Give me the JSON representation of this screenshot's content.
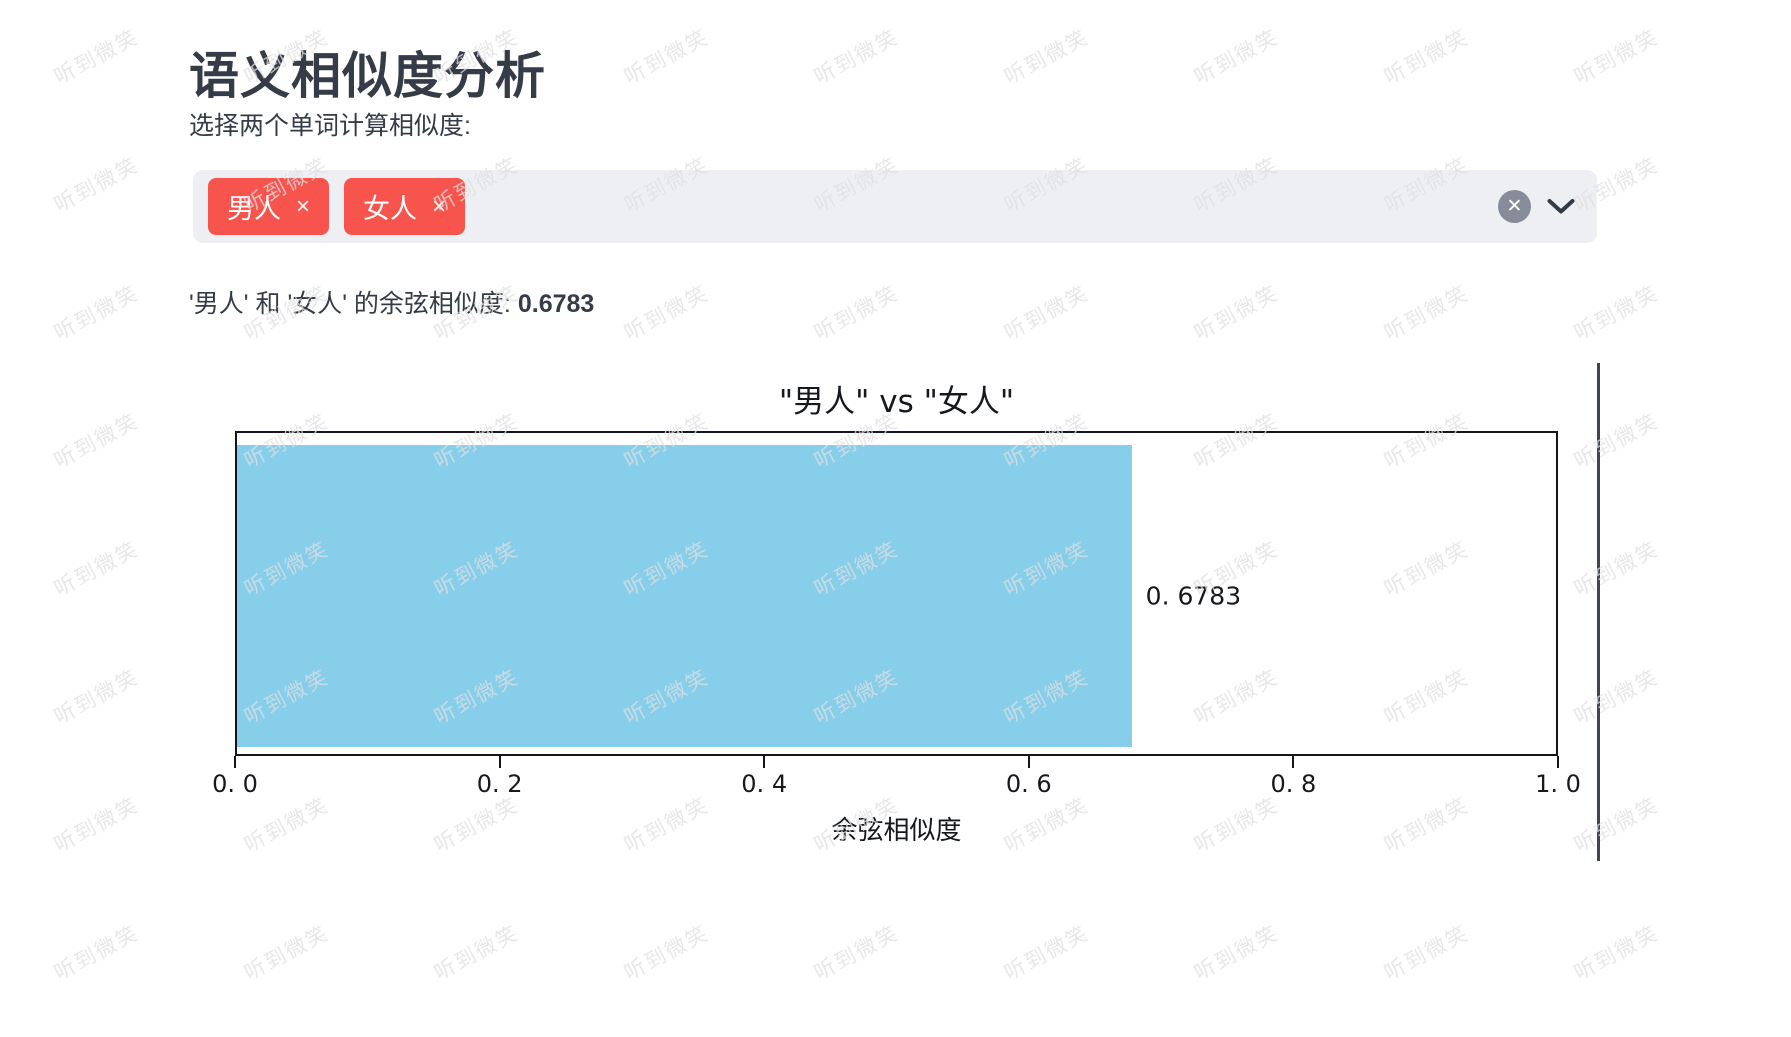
{
  "page": {
    "title": "语义相似度分析",
    "subtitle": "选择两个单词计算相似度:"
  },
  "word_selector": {
    "tags": [
      {
        "label": "男人",
        "remove_icon": "×"
      },
      {
        "label": "女人",
        "remove_icon": "×"
      }
    ],
    "clear_icon": "✕"
  },
  "result": {
    "text": "'男人' 和 '女人' 的余弦相似度:",
    "value": "0.6783"
  },
  "watermark": {
    "text": "听到微笑"
  },
  "chart_data": {
    "type": "bar",
    "orientation": "horizontal",
    "title": "\"男人\" vs \"女人\"",
    "series": [
      {
        "name": "余弦相似度",
        "values": [
          0.6783
        ]
      }
    ],
    "categories": [
      ""
    ],
    "bar_value_label": "0. 6783",
    "xlabel": "余弦相似度",
    "xlim": [
      0.0,
      1.0
    ],
    "xticks": [
      0.0,
      0.2,
      0.4,
      0.6,
      0.8,
      1.0
    ],
    "xtick_labels": [
      "0. 0",
      "0. 2",
      "0. 4",
      "0. 6",
      "0. 8",
      "1. 0"
    ],
    "bar_color": "#87CEEB",
    "grid": false,
    "legend": false
  },
  "colors": {
    "tag_red": "#f8544e",
    "input_bg": "#edeff3",
    "clear_gray": "#868d99",
    "text_dark": "#353b47",
    "divider": "#3f4550",
    "bar_blue": "#87CEEB"
  }
}
